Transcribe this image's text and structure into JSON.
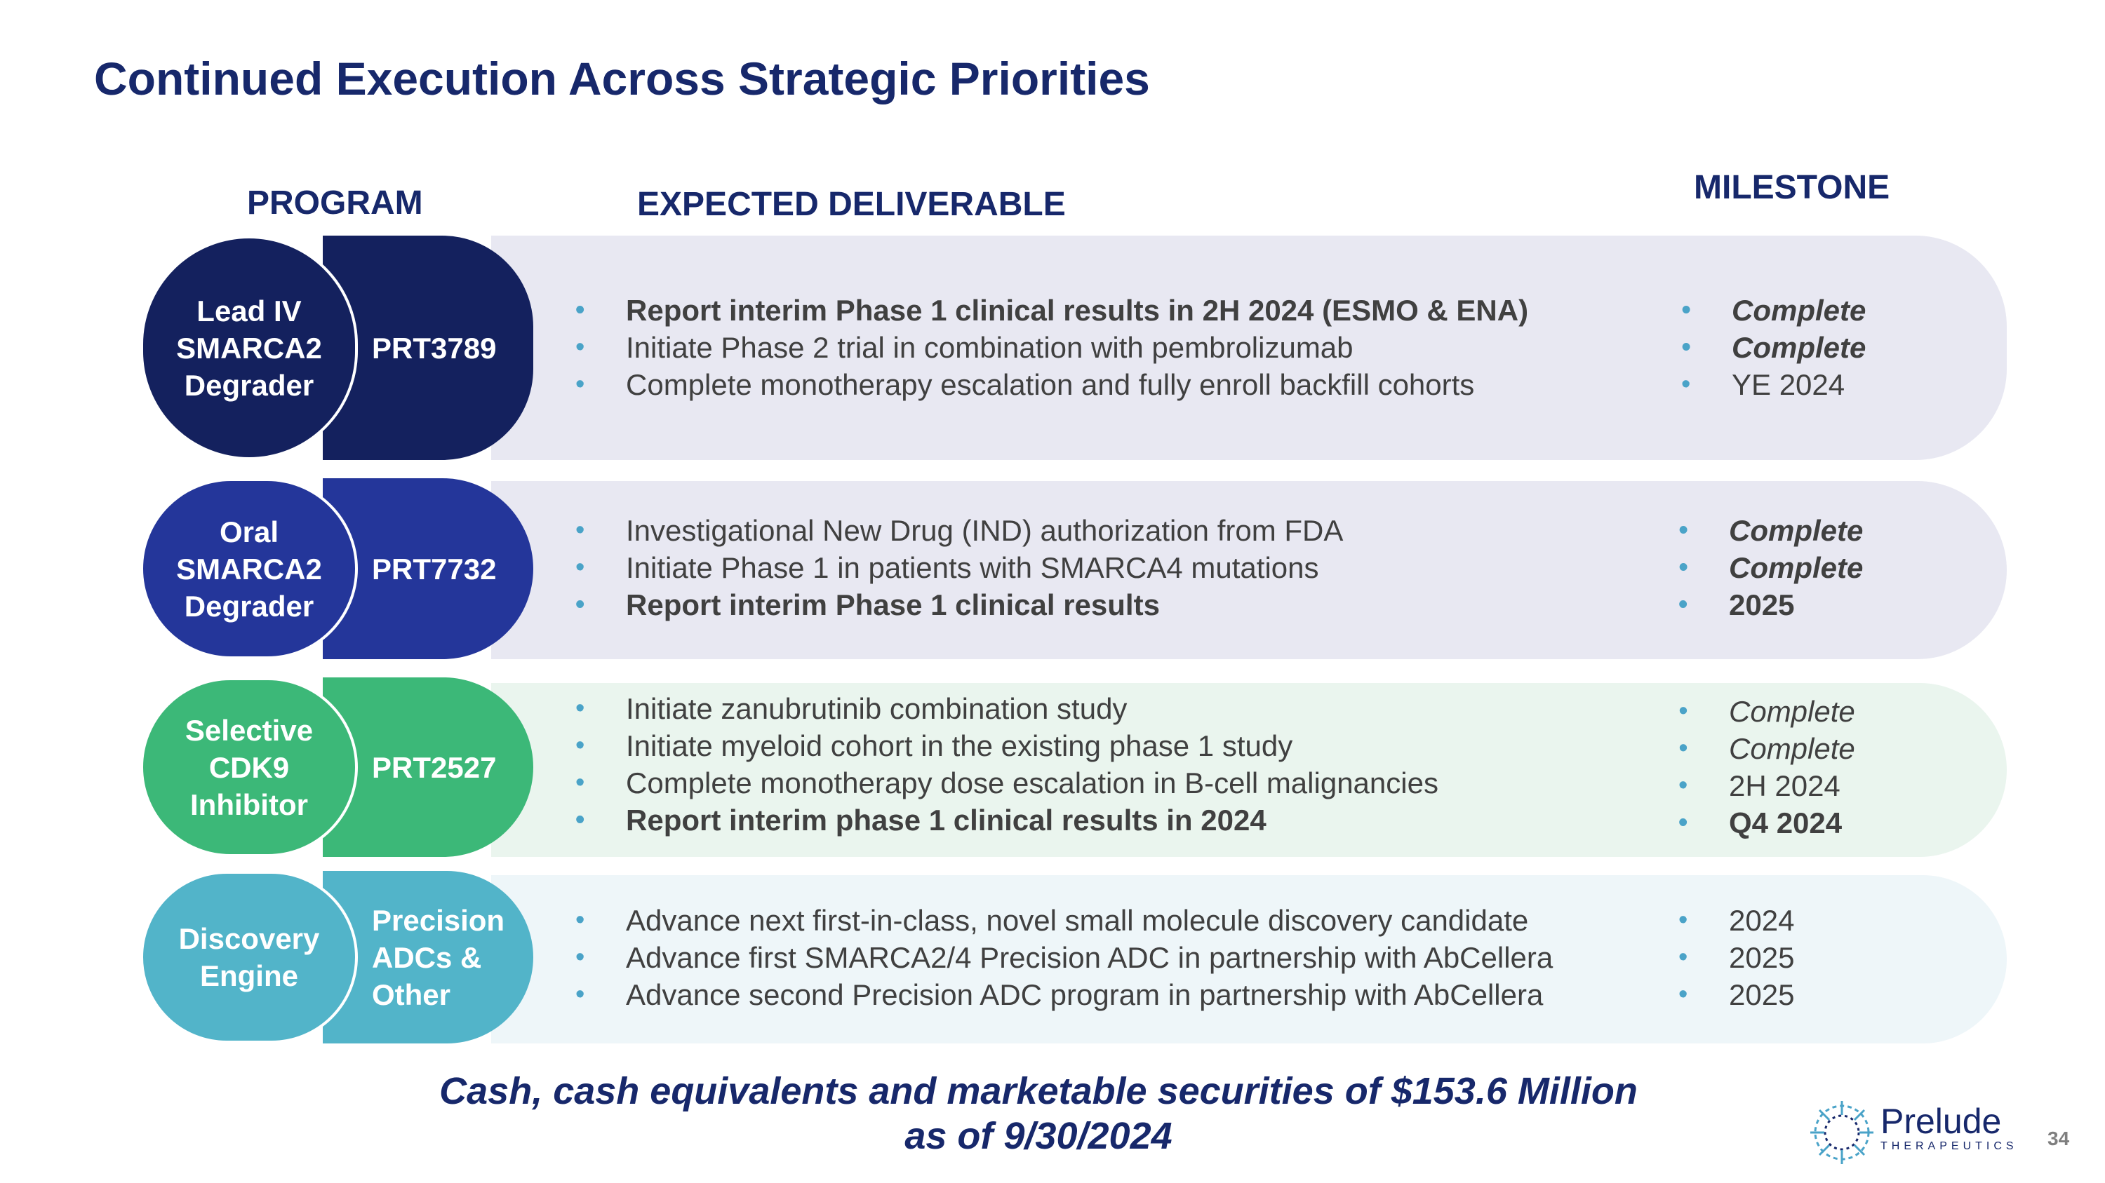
{
  "title": "Continued Execution Across Strategic Priorities",
  "headers": {
    "program": "PROGRAM",
    "deliverable": "EXPECTED DELIVERABLE",
    "milestone": "MILESTONE"
  },
  "programs": [
    {
      "label": "Lead IV\nSMARCA2\nDegrader",
      "code": "PRT3789",
      "color": "#14215e",
      "band_color": "#e8e8f2",
      "deliverables": [
        "Report interim Phase 1 clinical results in 2H 2024 (ESMO & ENA)",
        "Initiate Phase 2 trial in combination with pembrolizumab",
        "Complete monotherapy escalation and fully enroll backfill cohorts"
      ],
      "milestones": [
        "Complete",
        "Complete",
        "YE 2024"
      ]
    },
    {
      "label": "Oral\nSMARCA2\nDegrader",
      "code": "PRT7732",
      "color": "#24369a",
      "band_color": "#e8e8f2",
      "deliverables": [
        "Investigational New Drug (IND) authorization from FDA",
        "Initiate Phase 1 in patients with SMARCA4 mutations",
        "Report interim Phase 1 clinical results"
      ],
      "milestones": [
        "Complete",
        "Complete",
        "2025"
      ]
    },
    {
      "label": "Selective\nCDK9\nInhibitor",
      "code": "PRT2527",
      "color": "#3cb878",
      "band_color": "#eaf5ee",
      "deliverables": [
        "Initiate zanubrutinib combination study",
        "Initiate myeloid cohort in the existing phase 1 study",
        "Complete monotherapy dose escalation in B-cell malignancies",
        "Report interim phase 1 clinical results in 2024"
      ],
      "milestones": [
        "Complete",
        "Complete",
        "2H 2024",
        "Q4 2024"
      ]
    },
    {
      "label": "Discovery\nEngine",
      "code": "Precision\nADCs &\nOther",
      "color": "#52b4c9",
      "band_color": "#eef6f9",
      "deliverables": [
        "Advance next first-in-class, novel small molecule discovery candidate",
        "Advance first SMARCA2/4 Precision ADC in partnership with AbCellera",
        "Advance second Precision ADC program in partnership with AbCellera"
      ],
      "milestones": [
        "2024",
        "2025",
        "2025"
      ]
    }
  ],
  "footer": {
    "line1": "Cash, cash equivalents and marketable securities of $153.6 Million",
    "line2": "as of 9/30/2024"
  },
  "logo": {
    "name": "Prelude",
    "sub": "THERAPEUTICS",
    "icon": "prelude-logo-icon"
  },
  "page_number": "34"
}
